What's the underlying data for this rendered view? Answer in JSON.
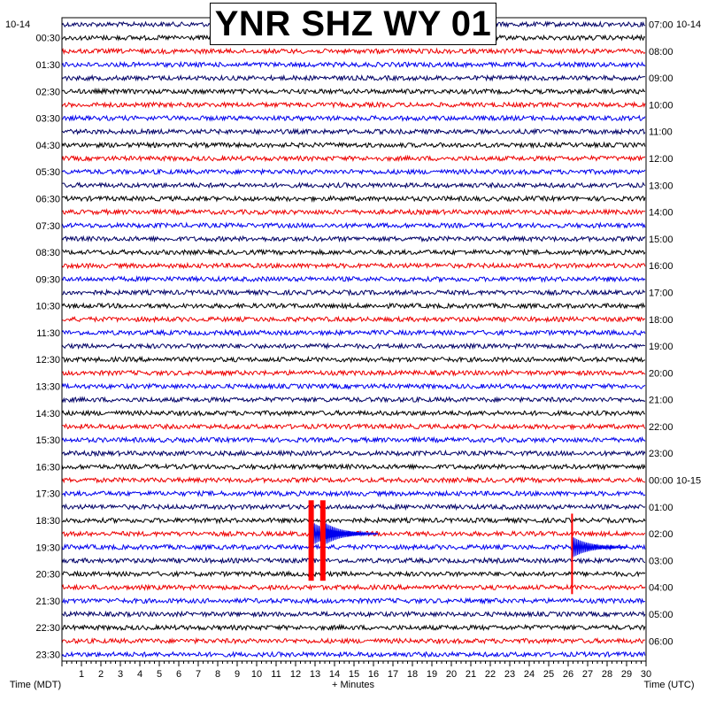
{
  "title": "YNR SHZ WY 01",
  "left_date": "10-14",
  "right_date": "10-14",
  "right_date_change": "10-15",
  "left_axis_label": "Time (MDT)",
  "x_axis_label": "+ Minutes",
  "right_axis_label": "Time (UTC)",
  "colors": {
    "trace_dark": "#000066",
    "trace_black": "#000000",
    "trace_red": "#ee0000",
    "trace_blue": "#0000ee",
    "event": "#ff0000"
  },
  "chart_data": {
    "type": "line",
    "plot_kind": "helicorder",
    "title": "YNR SHZ WY 01",
    "xlabel": "+ Minutes",
    "ylabel_left": "Time (MDT)",
    "ylabel_right": "Time (UTC)",
    "xlim": [
      0,
      30
    ],
    "x_ticks": [
      1,
      2,
      3,
      4,
      5,
      6,
      7,
      8,
      9,
      10,
      11,
      12,
      13,
      14,
      15,
      16,
      17,
      18,
      19,
      20,
      21,
      22,
      23,
      24,
      25,
      26,
      27,
      28,
      29,
      30
    ],
    "rows_per_hour": 2,
    "row_count": 48,
    "trace_color_cycle": [
      "#000066",
      "#000000",
      "#ee0000",
      "#0000ee"
    ],
    "left_ticks": [
      "00:30",
      "01:30",
      "02:30",
      "03:30",
      "04:30",
      "05:30",
      "06:30",
      "07:30",
      "08:30",
      "09:30",
      "10:30",
      "11:30",
      "12:30",
      "13:30",
      "14:30",
      "15:30",
      "16:30",
      "17:30",
      "18:30",
      "19:30",
      "20:30",
      "21:30",
      "22:30",
      "23:30"
    ],
    "right_ticks": [
      "07:00",
      "08:00",
      "09:00",
      "10:00",
      "11:00",
      "12:00",
      "13:00",
      "14:00",
      "15:00",
      "16:00",
      "17:00",
      "18:00",
      "19:00",
      "20:00",
      "21:00",
      "22:00",
      "23:00",
      "00:00",
      "01:00",
      "02:00",
      "03:00",
      "04:00",
      "05:00",
      "06:00"
    ],
    "events": [
      {
        "minute": 12.8,
        "start_row": 36,
        "end_row": 42,
        "amplitude": "clipped"
      },
      {
        "minute": 13.4,
        "start_row": 36,
        "end_row": 42,
        "amplitude": "clipped"
      },
      {
        "minute": 26.2,
        "start_row": 37,
        "end_row": 43,
        "amplitude": "large"
      }
    ]
  }
}
